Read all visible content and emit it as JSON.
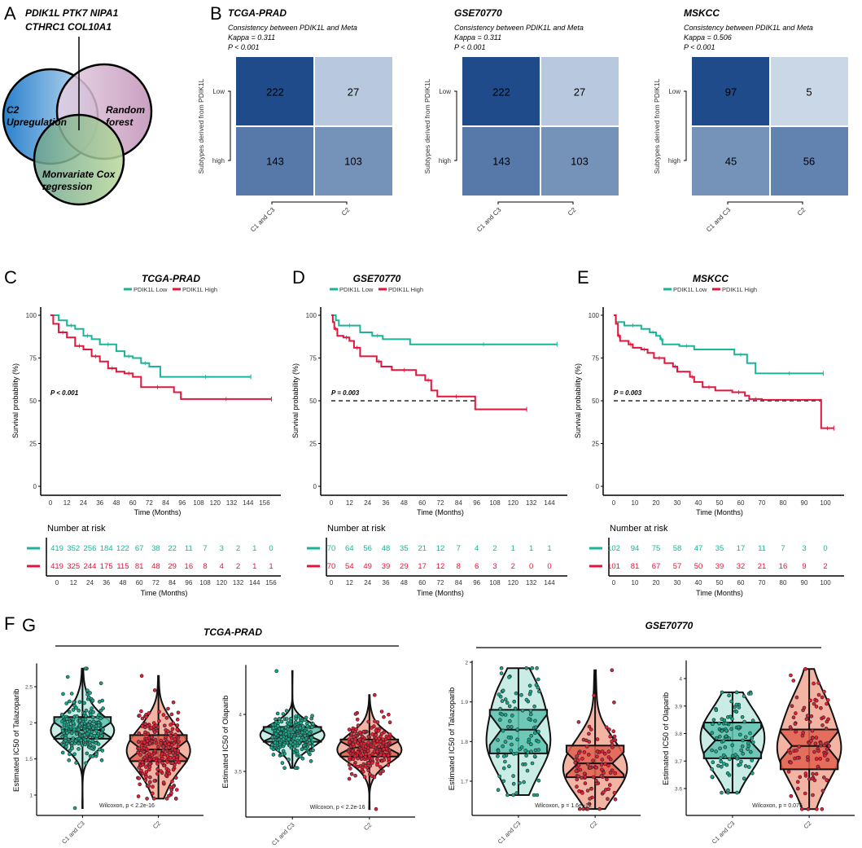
{
  "panel_labels": {
    "A": "A",
    "B": "B",
    "C": "C",
    "D": "D",
    "E": "E",
    "F": "F",
    "G": "G"
  },
  "venn": {
    "genes_line1": "PDIK1L  PTK7  NIPA1",
    "genes_line2": "CTHRC1  COL10A1",
    "sets": [
      {
        "label_lines": [
          "C2",
          "Upregulation"
        ],
        "color": "#3a8fd6"
      },
      {
        "label_lines": [
          "Random",
          "forest"
        ],
        "color": "#c79abd"
      },
      {
        "label_lines": [
          "Monvariate Cox",
          "regression"
        ],
        "color": "#a9cd86"
      }
    ]
  },
  "colors": {
    "low": "#1bb39a",
    "high": "#e0163c",
    "heat_low": "#dbe5f1",
    "heat_high": "#1f4b8a"
  },
  "chart_data": [
    {
      "type": "heatmap",
      "title": "TCGA-PRAD",
      "subtitle": "Consistency between PDIK1L and Meta",
      "kappa": "Kappa = 0.311",
      "p": "P < 0.001",
      "ylabel": "Subtypes derived from PDIK1L",
      "rows": [
        "Low",
        "high"
      ],
      "cols": [
        "C1 and C3",
        "C2"
      ],
      "values": [
        [
          222,
          27
        ],
        [
          143,
          103
        ]
      ]
    },
    {
      "type": "heatmap",
      "title": "GSE70770",
      "subtitle": "Consistency between PDIK1L and Meta",
      "kappa": "Kappa = 0.311",
      "p": "P < 0.001",
      "ylabel": "Subtypes derived from PDIK1L",
      "rows": [
        "Low",
        "high"
      ],
      "cols": [
        "C1 and C3",
        "C2"
      ],
      "values": [
        [
          222,
          27
        ],
        [
          143,
          103
        ]
      ]
    },
    {
      "type": "heatmap",
      "title": "MSKCC",
      "subtitle": "Consistency between PDIK1L and Meta",
      "kappa": "Kappa = 0.506",
      "p": "P < 0.001",
      "ylabel": "Subtypes derived from PDIK1L",
      "rows": [
        "Low",
        "high"
      ],
      "cols": [
        "C1 and C3",
        "C2"
      ],
      "values": [
        [
          97,
          5
        ],
        [
          45,
          56
        ]
      ]
    },
    {
      "type": "line",
      "subtype": "kaplan-meier",
      "title": "TCGA-PRAD",
      "legend": [
        "PDIK1L Low",
        "PDIK1L High"
      ],
      "legend_position": "top",
      "xlabel": "Time (Months)",
      "ylabel": "Survival probability (%)",
      "xticks": [
        0,
        12,
        24,
        36,
        48,
        60,
        72,
        84,
        96,
        108,
        120,
        132,
        144,
        156
      ],
      "yticks": [
        0,
        25,
        50,
        75,
        100
      ],
      "ylim": [
        0,
        100
      ],
      "pvalue": "P < 0.001",
      "median_line": false,
      "series": [
        {
          "name": "PDIK1L Low",
          "steps": [
            [
              0,
              100
            ],
            [
              6,
              97
            ],
            [
              12,
              94
            ],
            [
              18,
              92
            ],
            [
              24,
              88
            ],
            [
              30,
              86
            ],
            [
              36,
              83
            ],
            [
              48,
              79
            ],
            [
              54,
              76
            ],
            [
              60,
              75
            ],
            [
              66,
              72
            ],
            [
              72,
              70
            ],
            [
              80,
              64
            ],
            [
              146,
              64
            ]
          ]
        },
        {
          "name": "PDIK1L High",
          "steps": [
            [
              0,
              100
            ],
            [
              2,
              95
            ],
            [
              6,
              90
            ],
            [
              12,
              87
            ],
            [
              18,
              82
            ],
            [
              24,
              80
            ],
            [
              30,
              76
            ],
            [
              36,
              73
            ],
            [
              42,
              69
            ],
            [
              48,
              67
            ],
            [
              54,
              66
            ],
            [
              60,
              64
            ],
            [
              66,
              58
            ],
            [
              90,
              55
            ],
            [
              95,
              51
            ],
            [
              161,
              51
            ]
          ]
        }
      ],
      "risk_title": "Number at risk",
      "risk": [
        [
          419,
          352,
          256,
          184,
          122,
          67,
          38,
          22,
          11,
          7,
          3,
          2,
          1,
          0
        ],
        [
          419,
          325,
          244,
          175,
          115,
          81,
          48,
          29,
          16,
          8,
          4,
          2,
          1,
          1
        ]
      ]
    },
    {
      "type": "line",
      "subtype": "kaplan-meier",
      "title": "GSE70770",
      "legend": [
        "PDIK1L Low",
        "PDIK1L High"
      ],
      "legend_position": "top",
      "xlabel": "Time (Months)",
      "ylabel": "Survival probability (%)",
      "xticks": [
        0,
        12,
        24,
        36,
        48,
        60,
        72,
        84,
        96,
        108,
        120,
        132,
        144
      ],
      "yticks": [
        0,
        25,
        50,
        75,
        100
      ],
      "ylim": [
        0,
        100
      ],
      "pvalue": "P = 0.003",
      "median_line": true,
      "series": [
        {
          "name": "PDIK1L Low",
          "steps": [
            [
              0,
              100
            ],
            [
              3,
              97
            ],
            [
              5,
              94
            ],
            [
              19,
              90
            ],
            [
              27,
              88
            ],
            [
              34,
              86
            ],
            [
              52,
              83
            ],
            [
              149,
              83
            ]
          ]
        },
        {
          "name": "PDIK1L High",
          "steps": [
            [
              0,
              100
            ],
            [
              1,
              96
            ],
            [
              2,
              92
            ],
            [
              4,
              88
            ],
            [
              8,
              87
            ],
            [
              12,
              85
            ],
            [
              15,
              81
            ],
            [
              19,
              76
            ],
            [
              30,
              73
            ],
            [
              33,
              70
            ],
            [
              40,
              68
            ],
            [
              56,
              65
            ],
            [
              62,
              62
            ],
            [
              66,
              56
            ],
            [
              70,
              52.5
            ],
            [
              95,
              45
            ],
            [
              129,
              45
            ]
          ]
        }
      ],
      "risk_title": "Number at risk",
      "risk": [
        [
          70,
          64,
          56,
          48,
          35,
          21,
          12,
          7,
          4,
          2,
          1,
          1,
          1
        ],
        [
          70,
          54,
          49,
          39,
          29,
          17,
          12,
          8,
          6,
          3,
          2,
          0,
          0
        ]
      ]
    },
    {
      "type": "line",
      "subtype": "kaplan-meier",
      "title": "MSKCC",
      "legend": [
        "PDIK1L Low",
        "PDIK1L High"
      ],
      "legend_position": "top",
      "xlabel": "Time (Months)",
      "ylabel": "Survival probability (%)",
      "xticks": [
        0,
        10,
        20,
        30,
        40,
        50,
        60,
        70,
        80,
        90,
        100
      ],
      "yticks": [
        0,
        25,
        50,
        75,
        100
      ],
      "ylim": [
        0,
        100
      ],
      "pvalue": "P = 0.003",
      "median_line": true,
      "series": [
        {
          "name": "PDIK1L Low",
          "steps": [
            [
              0,
              100
            ],
            [
              1,
              96
            ],
            [
              5,
              94
            ],
            [
              13,
              92
            ],
            [
              17,
              90
            ],
            [
              20,
              88
            ],
            [
              22,
              86
            ],
            [
              23,
              83
            ],
            [
              31,
              82
            ],
            [
              38,
              80
            ],
            [
              57,
              77
            ],
            [
              63,
              72
            ],
            [
              67,
              66
            ],
            [
              99,
              66
            ]
          ]
        },
        {
          "name": "PDIK1L High",
          "steps": [
            [
              0,
              100
            ],
            [
              1,
              95
            ],
            [
              2,
              88
            ],
            [
              3,
              85
            ],
            [
              7,
              83
            ],
            [
              9,
              81
            ],
            [
              13,
              80
            ],
            [
              16,
              78
            ],
            [
              19,
              75
            ],
            [
              24,
              72
            ],
            [
              28,
              70
            ],
            [
              30,
              67
            ],
            [
              36,
              64
            ],
            [
              38,
              61
            ],
            [
              42,
              58
            ],
            [
              48,
              56
            ],
            [
              56,
              55
            ],
            [
              62,
              53
            ],
            [
              64,
              51
            ],
            [
              70,
              50.5
            ],
            [
              98,
              34
            ],
            [
              104,
              34
            ]
          ]
        }
      ],
      "risk_title": "Number at risk",
      "risk": [
        [
          102,
          94,
          75,
          58,
          47,
          35,
          17,
          11,
          7,
          3,
          0
        ],
        [
          101,
          81,
          67,
          57,
          50,
          39,
          32,
          21,
          16,
          9,
          2
        ]
      ]
    },
    {
      "type": "violin",
      "group_title": "TCGA-PRAD",
      "ylabel": "Estimated IC50 of Talazoparib",
      "categories": [
        "C1 and C3",
        "C2"
      ],
      "yticks": [
        1.0,
        1.5,
        2.0,
        2.5
      ],
      "ylim": [
        0.78,
        2.8
      ],
      "stat": "Wilcoxon, p < 2.2e-16",
      "summary": [
        {
          "q1": 1.78,
          "median": 1.9,
          "q3": 2.08,
          "min": 0.82,
          "max": 2.75
        },
        {
          "q1": 1.47,
          "median": 1.63,
          "q3": 1.83,
          "min": 0.95,
          "max": 2.65
        }
      ]
    },
    {
      "type": "violin",
      "group_title": "TCGA-PRAD",
      "ylabel": "Estimated IC50 of Olaparib",
      "categories": [
        "C1 and C3",
        "C2"
      ],
      "yticks": [
        3.5,
        4.0
      ],
      "ylim": [
        3.12,
        4.42
      ],
      "stat": "Wilcoxon, p < 2.2e-16",
      "summary": [
        {
          "q1": 3.76,
          "median": 3.81,
          "q3": 3.89,
          "min": 3.53,
          "max": 4.38
        },
        {
          "q1": 3.63,
          "median": 3.71,
          "q3": 3.78,
          "min": 3.17,
          "max": 4.17
        }
      ]
    },
    {
      "type": "violin",
      "group_title": "GSE70770",
      "ylabel": "Estimated IC50 of Talazoparib",
      "categories": [
        "C1 and C3",
        "C2"
      ],
      "yticks": [
        1.7,
        1.8,
        1.9,
        2.0
      ],
      "ylim": [
        1.615,
        2.0
      ],
      "stat": "Wilcoxon, p = 1.6e−12",
      "summary": [
        {
          "q1": 1.77,
          "median": 1.83,
          "q3": 1.88,
          "min": 1.665,
          "max": 1.985
        },
        {
          "q1": 1.71,
          "median": 1.745,
          "q3": 1.79,
          "min": 1.63,
          "max": 1.98
        }
      ]
    },
    {
      "type": "violin",
      "group_title": "GSE70770",
      "ylabel": "Estimated IC50 of Olaparib",
      "categories": [
        "C1 and C3",
        "C2"
      ],
      "yticks": [
        3.6,
        3.7,
        3.8,
        3.9,
        4.0
      ],
      "ylim": [
        3.5,
        4.06
      ],
      "stat": "Wilcoxon, p = 0.075",
      "summary": [
        {
          "q1": 3.71,
          "median": 3.775,
          "q3": 3.84,
          "min": 3.585,
          "max": 3.95
        },
        {
          "q1": 3.67,
          "median": 3.755,
          "q3": 3.815,
          "min": 3.525,
          "max": 4.035
        }
      ]
    }
  ]
}
